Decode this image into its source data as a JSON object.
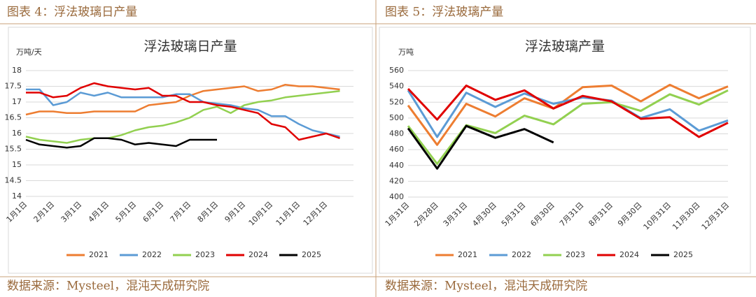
{
  "chart_data": [
    {
      "type": "line",
      "caption": "图表 4：浮法玻璃日产量",
      "title": "浮法玻璃日产量",
      "y_label": "万吨/天",
      "source": "数据来源：Mysteel，混沌天成研究院",
      "categories": [
        "1月1日",
        null,
        "2月1日",
        null,
        "3月1日",
        null,
        "4月1日",
        null,
        "5月1日",
        null,
        "6月1日",
        null,
        "7月1日",
        null,
        "8月1日",
        null,
        "9月1日",
        null,
        "10月1日",
        null,
        "11月1日",
        null,
        "12月1日",
        null
      ],
      "series": [
        {
          "name": "2021",
          "color": "#ED7D31",
          "values": [
            16.6,
            16.7,
            16.7,
            16.65,
            16.65,
            16.7,
            16.7,
            16.7,
            16.7,
            16.9,
            16.95,
            17.0,
            17.2,
            17.35,
            17.4,
            17.45,
            17.5,
            17.35,
            17.4,
            17.55,
            17.5,
            17.5,
            17.45,
            17.4
          ]
        },
        {
          "name": "2022",
          "color": "#5B9BD5",
          "values": [
            17.4,
            17.4,
            16.9,
            17.0,
            17.3,
            17.2,
            17.3,
            17.15,
            17.15,
            17.15,
            17.15,
            17.25,
            17.25,
            17.0,
            16.95,
            16.9,
            16.8,
            16.75,
            16.55,
            16.55,
            16.3,
            16.1,
            16.0,
            15.9
          ]
        },
        {
          "name": "2023",
          "color": "#92D050",
          "values": [
            15.9,
            15.8,
            15.75,
            15.7,
            15.8,
            15.85,
            15.85,
            15.95,
            16.1,
            16.2,
            16.25,
            16.35,
            16.5,
            16.75,
            16.85,
            16.65,
            16.9,
            17.0,
            17.05,
            17.15,
            17.2,
            17.25,
            17.3,
            17.35
          ]
        },
        {
          "name": "2024",
          "color": "#E00000",
          "values": [
            17.3,
            17.3,
            17.15,
            17.2,
            17.45,
            17.6,
            17.5,
            17.45,
            17.4,
            17.45,
            17.2,
            17.2,
            17.0,
            17.0,
            16.9,
            16.85,
            16.75,
            16.65,
            16.3,
            16.2,
            15.8,
            15.9,
            16.0,
            15.85
          ]
        },
        {
          "name": "2025",
          "color": "#000000",
          "values": [
            15.8,
            15.65,
            15.6,
            15.55,
            15.6,
            15.85,
            15.85,
            15.8,
            15.65,
            15.7,
            15.65,
            15.6,
            15.8,
            15.8,
            15.8,
            null,
            null,
            null,
            null,
            null,
            null,
            null,
            null,
            null
          ]
        }
      ],
      "ylim": [
        14,
        18
      ],
      "yticks": [
        14,
        14.5,
        15,
        15.5,
        16,
        16.5,
        17,
        17.5,
        18
      ],
      "grid": true,
      "legend": "bottom"
    },
    {
      "type": "line",
      "caption": "图表 5：浮法玻璃产量",
      "title": "浮法玻璃产量",
      "y_label": "万吨",
      "source": "数据来源：Mysteel，混沌天成研究院",
      "categories": [
        "1月31日",
        "2月28日",
        "3月31日",
        "4月30日",
        "5月31日",
        "6月30日",
        "7月31日",
        "8月31日",
        "9月30日",
        "10月31日",
        "11月30日",
        "12月31日"
      ],
      "series": [
        {
          "name": "2021",
          "color": "#ED7D31",
          "values": [
            516,
            466,
            518,
            502,
            525,
            512,
            539,
            541,
            521,
            542,
            525,
            540
          ]
        },
        {
          "name": "2022",
          "color": "#5B9BD5",
          "values": [
            535,
            476,
            532,
            514,
            531,
            518,
            526,
            522,
            500,
            511,
            484,
            497
          ]
        },
        {
          "name": "2023",
          "color": "#92D050",
          "values": [
            490,
            442,
            491,
            481,
            503,
            492,
            518,
            520,
            509,
            530,
            517,
            535
          ]
        },
        {
          "name": "2024",
          "color": "#E00000",
          "values": [
            537,
            498,
            541,
            523,
            535,
            512,
            528,
            521,
            499,
            501,
            476,
            494
          ]
        },
        {
          "name": "2025",
          "color": "#000000",
          "values": [
            487,
            436,
            490,
            475,
            486,
            469,
            null,
            null,
            null,
            null,
            null,
            null
          ]
        }
      ],
      "ylim": [
        400,
        560
      ],
      "yticks": [
        400,
        420,
        440,
        460,
        480,
        500,
        520,
        540,
        560
      ],
      "grid": true,
      "legend": "bottom"
    }
  ]
}
